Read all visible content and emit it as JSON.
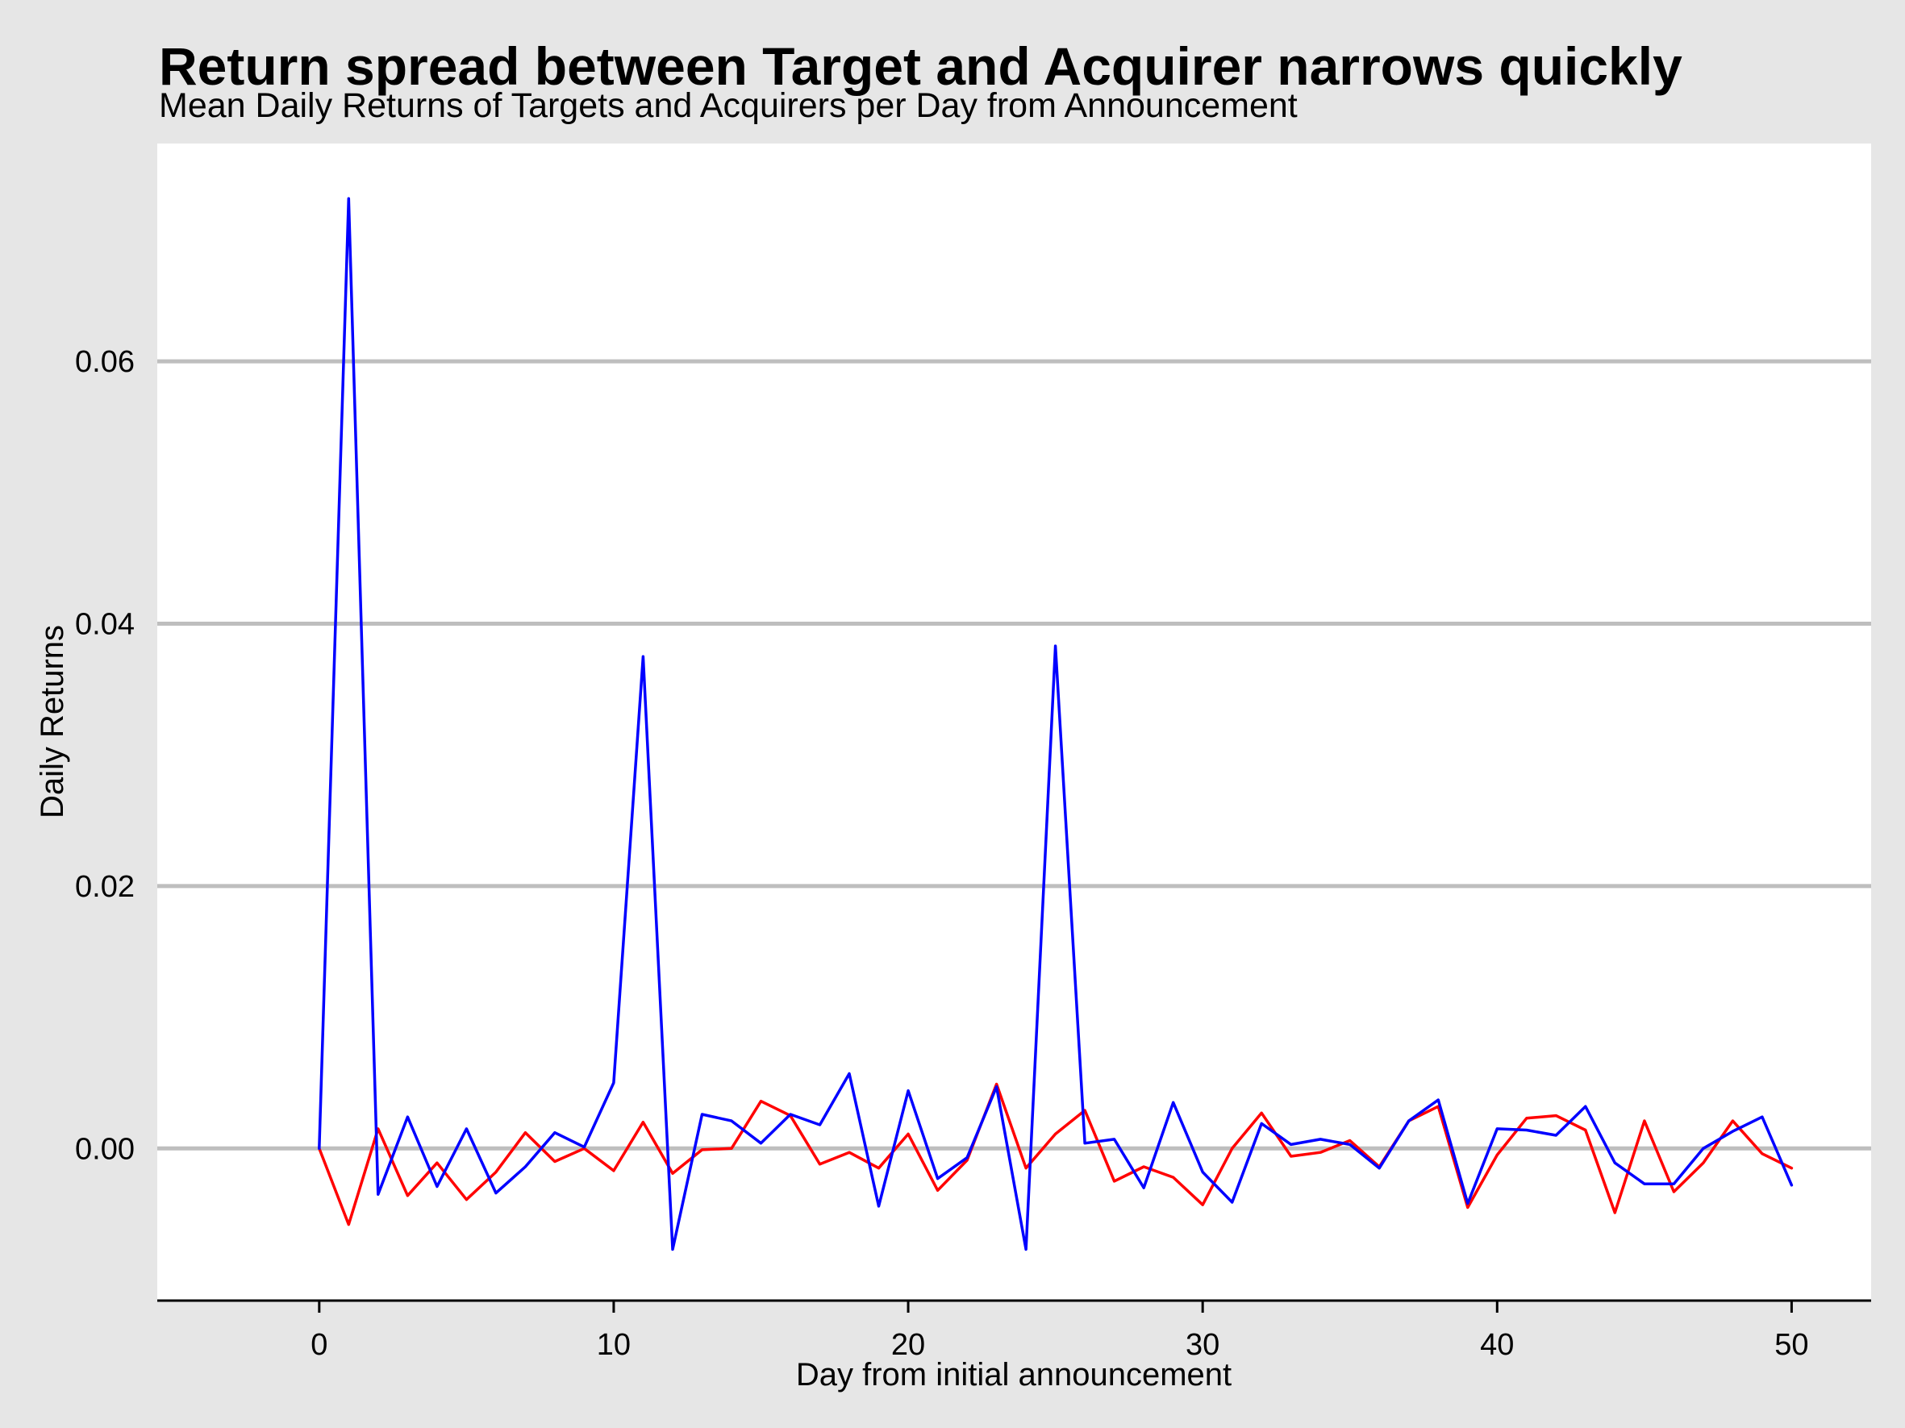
{
  "chart_data": {
    "type": "line",
    "title": "Return spread between Target and Acquirer narrows quickly",
    "subtitle": "Mean Daily Returns of Targets and Acquirers per Day from Announcement",
    "xlabel": "Day from initial announcement",
    "ylabel": "Daily Returns",
    "xlim": [
      -5.5,
      52.7
    ],
    "ylim": [
      -0.0116,
      0.0766
    ],
    "x_ticks": [
      0,
      10,
      20,
      30,
      40,
      50
    ],
    "y_ticks": [
      0.0,
      0.02,
      0.04,
      0.06
    ],
    "x_tick_labels": [
      "0",
      "10",
      "20",
      "30",
      "40",
      "50"
    ],
    "y_tick_labels": [
      "0.00",
      "0.02",
      "0.04",
      "0.06"
    ],
    "grid": "horizontal",
    "x": [
      0,
      1,
      2,
      3,
      4,
      5,
      6,
      7,
      8,
      9,
      10,
      11,
      12,
      13,
      14,
      15,
      16,
      17,
      18,
      19,
      20,
      21,
      22,
      23,
      24,
      25,
      26,
      27,
      28,
      29,
      30,
      31,
      32,
      33,
      34,
      35,
      36,
      37,
      38,
      39,
      40,
      41,
      42,
      43,
      44,
      45,
      46,
      47,
      48,
      49,
      50
    ],
    "series": [
      {
        "color": "#ff0000",
        "values": [
          0.0,
          -0.0058,
          0.0015,
          -0.0036,
          -0.0011,
          -0.0039,
          -0.0018,
          0.0012,
          -0.001,
          0.0,
          -0.0017,
          0.002,
          -0.0019,
          -0.0001,
          0.0,
          0.0036,
          0.0025,
          -0.0012,
          -0.0003,
          -0.0015,
          0.0011,
          -0.0032,
          -0.0009,
          0.0049,
          -0.0015,
          0.0011,
          0.0029,
          -0.0025,
          -0.0014,
          -0.0022,
          -0.0043,
          0.0,
          0.0027,
          -0.0006,
          -0.0003,
          0.0006,
          -0.0014,
          0.0021,
          0.0032,
          -0.0045,
          -0.0005,
          0.0023,
          0.0025,
          0.0014,
          -0.0049,
          0.0021,
          -0.0033,
          -0.0011,
          0.0021,
          -0.0004,
          -0.0015
        ]
      },
      {
        "color": "#0000ff",
        "values": [
          0.0,
          0.0724,
          -0.0035,
          0.0024,
          -0.0029,
          0.0015,
          -0.0034,
          -0.0014,
          0.0012,
          0.0001,
          0.005,
          0.0375,
          -0.0077,
          0.0026,
          0.0021,
          0.0004,
          0.0026,
          0.0018,
          0.0057,
          -0.0044,
          0.0044,
          -0.0023,
          -0.0007,
          0.0047,
          -0.0077,
          0.0383,
          0.0004,
          0.0007,
          -0.003,
          0.0035,
          -0.0018,
          -0.0041,
          0.0019,
          0.0003,
          0.0007,
          0.0003,
          -0.0015,
          0.0021,
          0.0037,
          -0.0042,
          0.0015,
          0.0014,
          0.001,
          0.0032,
          -0.0011,
          -0.0027,
          -0.0027,
          0.0,
          0.0013,
          0.0024,
          -0.0028
        ]
      }
    ]
  }
}
